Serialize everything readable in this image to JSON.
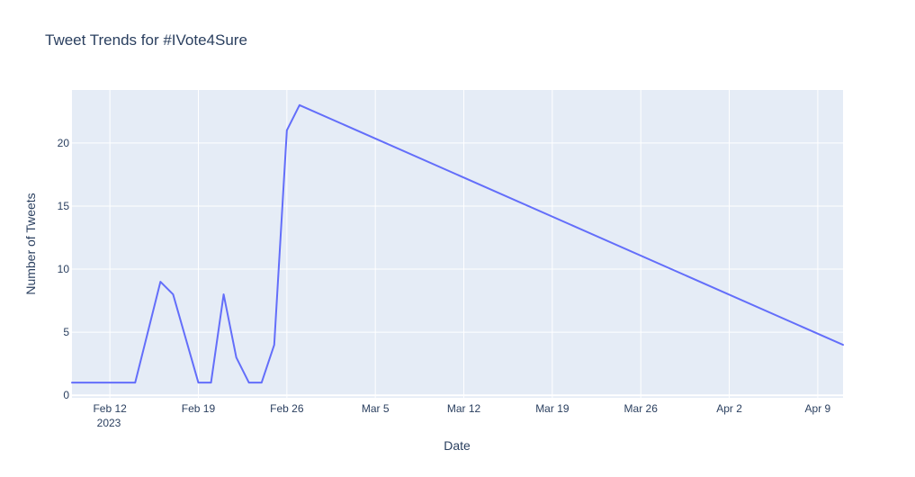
{
  "chart_data": {
    "type": "line",
    "title": "Tweet Trends for #IVote4Sure",
    "xlabel": "Date",
    "ylabel": "Number of Tweets",
    "x_tick_labels": [
      "Feb 12",
      "Feb 19",
      "Feb 26",
      "Mar 5",
      "Mar 12",
      "Mar 19",
      "Mar 26",
      "Apr 2",
      "Apr 9"
    ],
    "x_tick_dates": [
      "2023-02-12",
      "2023-02-19",
      "2023-02-26",
      "2023-03-05",
      "2023-03-12",
      "2023-03-19",
      "2023-03-26",
      "2023-04-02",
      "2023-04-09"
    ],
    "x_year_label": "2023",
    "y_ticks": [
      0,
      5,
      10,
      15,
      20
    ],
    "xlim": [
      "2023-02-09",
      "2023-04-11"
    ],
    "ylim": [
      -0.2,
      24.2
    ],
    "grid": true,
    "colors": {
      "plot_background": "#E5ECF6",
      "grid": "#ffffff",
      "line": "#636EFA",
      "text": "#2a3f5f"
    },
    "series": [
      {
        "x": [
          "2023-02-09",
          "2023-02-10",
          "2023-02-11",
          "2023-02-12",
          "2023-02-13",
          "2023-02-14",
          "2023-02-15",
          "2023-02-16",
          "2023-02-17",
          "2023-02-18",
          "2023-02-19",
          "2023-02-20",
          "2023-02-21",
          "2023-02-22",
          "2023-02-23",
          "2023-02-24",
          "2023-02-25",
          "2023-02-26",
          "2023-02-27",
          "2023-04-11"
        ],
        "y": [
          1,
          1,
          1,
          1,
          1,
          1,
          5,
          9,
          8,
          4.5,
          1,
          1,
          8,
          3,
          1,
          1,
          4,
          21,
          23,
          4
        ]
      }
    ]
  }
}
